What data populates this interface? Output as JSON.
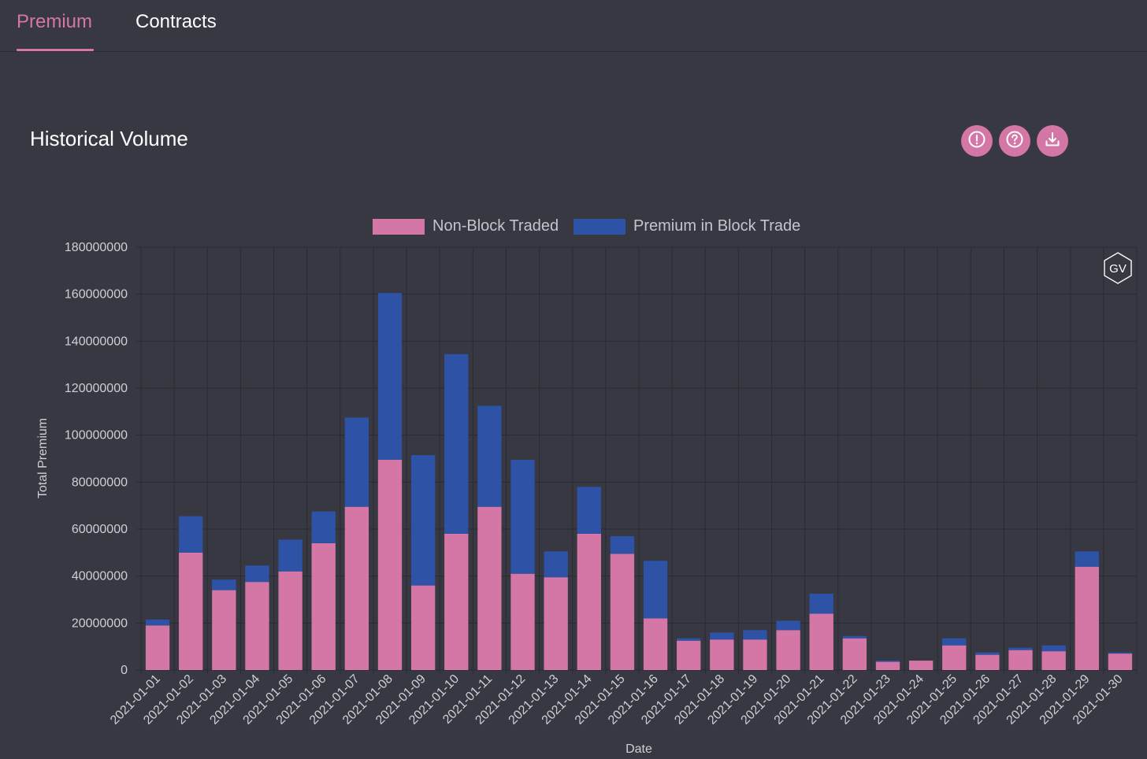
{
  "tabs": [
    {
      "label": "Premium",
      "active": true
    },
    {
      "label": "Contracts",
      "active": false
    }
  ],
  "section_title": "Historical Volume",
  "toolbar_icons": [
    "alert-icon",
    "help-icon",
    "download-icon"
  ],
  "watermark": "GV",
  "colors": {
    "background": "#373842",
    "accent": "#d577a6",
    "non_block": "#d577a6",
    "block": "#2d52a6",
    "grid": "#2a2b33"
  },
  "chart_data": {
    "type": "bar",
    "stacked": true,
    "title": "",
    "xlabel": "Date",
    "ylabel": "Total Premium",
    "ylim": [
      0,
      180000000
    ],
    "yticks": [
      "0",
      "20000000",
      "40000000",
      "60000000",
      "80000000",
      "100000000",
      "120000000",
      "140000000",
      "160000000",
      "180000000"
    ],
    "grid": true,
    "legend_position": "top-center",
    "categories": [
      "2021-01-01",
      "2021-01-02",
      "2021-01-03",
      "2021-01-04",
      "2021-01-05",
      "2021-01-06",
      "2021-01-07",
      "2021-01-08",
      "2021-01-09",
      "2021-01-10",
      "2021-01-11",
      "2021-01-12",
      "2021-01-13",
      "2021-01-14",
      "2021-01-15",
      "2021-01-16",
      "2021-01-17",
      "2021-01-18",
      "2021-01-19",
      "2021-01-20",
      "2021-01-21",
      "2021-01-22",
      "2021-01-23",
      "2021-01-24",
      "2021-01-25",
      "2021-01-26",
      "2021-01-27",
      "2021-01-28",
      "2021-01-29",
      "2021-01-30"
    ],
    "series": [
      {
        "name": "Non-Block Traded",
        "color": "#d577a6",
        "values": [
          19000000,
          50000000,
          34000000,
          37500000,
          42000000,
          54000000,
          69500000,
          89500000,
          36000000,
          58000000,
          69500000,
          41000000,
          39500000,
          58000000,
          49500000,
          22000000,
          12500000,
          13000000,
          13000000,
          17000000,
          24000000,
          13500000,
          3500000,
          4000000,
          10500000,
          6500000,
          8500000,
          8000000,
          44000000,
          7000000
        ]
      },
      {
        "name": "Premium in Block Trade",
        "color": "#2d52a6",
        "values": [
          2500000,
          15500000,
          4500000,
          7000000,
          13500000,
          13500000,
          38000000,
          71000000,
          55500000,
          76500000,
          43000000,
          48500000,
          11000000,
          20000000,
          7500000,
          24500000,
          1000000,
          3000000,
          4000000,
          4000000,
          8500000,
          1000000,
          500000,
          0,
          3000000,
          1000000,
          1000000,
          2500000,
          6500000,
          500000
        ]
      }
    ]
  }
}
